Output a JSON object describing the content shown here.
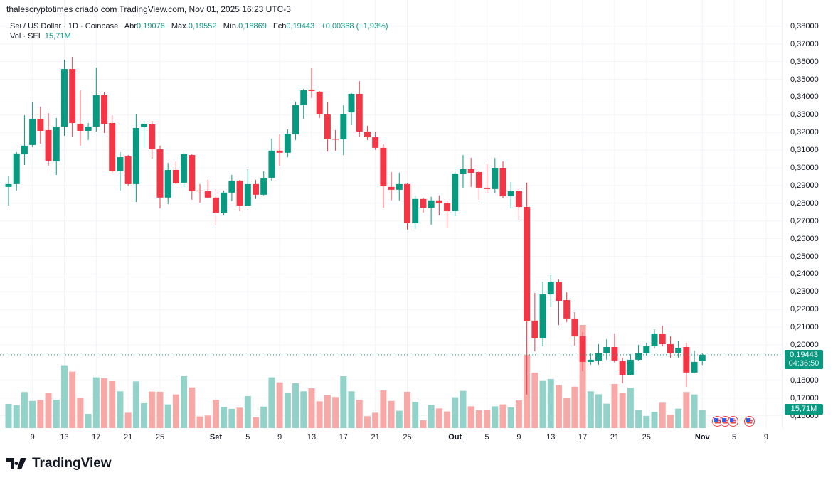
{
  "header": {
    "attribution": "thalescryptotimes criado com TradingView.com, Nov 01, 2025 16:23 UTC-3"
  },
  "legend": {
    "symbol": "Sei / US Dollar · 1D · Coinbase",
    "open_label": "Abr",
    "open": "0,19076",
    "high_label": "Máx.",
    "high": "0,19552",
    "low_label": "Mín.",
    "low": "0,18869",
    "close_label": "Fch",
    "close": "0,19443",
    "change": "+0,00368 (+1,93%)",
    "vol_label": "Vol · SEI",
    "vol": "15,71M"
  },
  "price_axis": {
    "labels": [
      "0,38000",
      "0,37000",
      "0,36000",
      "0,35000",
      "0,34000",
      "0,33000",
      "0,32000",
      "0,31000",
      "0,30000",
      "0,29000",
      "0,28000",
      "0,27000",
      "0,26000",
      "0,25000",
      "0,24000",
      "0,23000",
      "0,22000",
      "0,21000",
      "0,20000",
      "0,18000",
      "0,17000",
      "0,16000"
    ],
    "current_price": "0,19443",
    "countdown": "04:36:50",
    "current_volume": "15,71M"
  },
  "events": [
    "us-flag-icon",
    "us-flag-icon",
    "us-flag-icon",
    "us-flag-icon"
  ],
  "brand": {
    "name": "TradingView"
  },
  "colors": {
    "up": "#089981",
    "down": "#F23645",
    "vol_up": "#92d2c8",
    "vol_down": "#f7a9a8"
  },
  "chart_data": {
    "type": "candlestick",
    "title": "Sei / US Dollar · 1D · Coinbase",
    "start_date": "2025-08-06",
    "interval": "1D",
    "ylim": [
      0.1595,
      0.3815
    ],
    "grid": true,
    "fields": [
      "open",
      "high",
      "low",
      "close",
      "volume_M"
    ],
    "x_ticks": [
      {
        "label": "9",
        "index": 3
      },
      {
        "label": "13",
        "index": 7
      },
      {
        "label": "17",
        "index": 11
      },
      {
        "label": "21",
        "index": 15
      },
      {
        "label": "25",
        "index": 19
      },
      {
        "label": "Set",
        "index": 26,
        "bold": true
      },
      {
        "label": "5",
        "index": 30
      },
      {
        "label": "9",
        "index": 34
      },
      {
        "label": "13",
        "index": 38
      },
      {
        "label": "17",
        "index": 42
      },
      {
        "label": "21",
        "index": 46
      },
      {
        "label": "25",
        "index": 50
      },
      {
        "label": "Out",
        "index": 56,
        "bold": true
      },
      {
        "label": "5",
        "index": 60
      },
      {
        "label": "9",
        "index": 64
      },
      {
        "label": "13",
        "index": 68
      },
      {
        "label": "17",
        "index": 72
      },
      {
        "label": "21",
        "index": 76
      },
      {
        "label": "25",
        "index": 80
      },
      {
        "label": "Nov",
        "index": 87,
        "bold": true
      },
      {
        "label": "5",
        "index": 91
      },
      {
        "label": "9",
        "index": 95
      }
    ],
    "y_ticks": [
      0.38,
      0.37,
      0.36,
      0.35,
      0.34,
      0.33,
      0.32,
      0.31,
      0.3,
      0.29,
      0.28,
      0.27,
      0.26,
      0.25,
      0.24,
      0.23,
      0.22,
      0.21,
      0.2,
      0.18,
      0.17,
      0.16
    ],
    "last_price": 0.19443,
    "candles": [
      [
        0.2892,
        0.2952,
        0.2787,
        0.2908,
        20.8
      ],
      [
        0.2908,
        0.3089,
        0.2872,
        0.3081,
        19.6
      ],
      [
        0.3077,
        0.3297,
        0.3016,
        0.3125,
        31.0
      ],
      [
        0.3129,
        0.337,
        0.3117,
        0.3277,
        23.4
      ],
      [
        0.3277,
        0.3346,
        0.3137,
        0.3209,
        24.2
      ],
      [
        0.3213,
        0.3309,
        0.3012,
        0.304,
        30.4
      ],
      [
        0.3036,
        0.3281,
        0.296,
        0.3233,
        24.4
      ],
      [
        0.3233,
        0.3611,
        0.3181,
        0.3558,
        54.0
      ],
      [
        0.3558,
        0.3627,
        0.3177,
        0.3253,
        48.5
      ],
      [
        0.3249,
        0.3438,
        0.3125,
        0.3209,
        25.9
      ],
      [
        0.3209,
        0.3253,
        0.3157,
        0.3233,
        12.2
      ],
      [
        0.3233,
        0.3566,
        0.3205,
        0.341,
        43.6
      ],
      [
        0.341,
        0.3426,
        0.3197,
        0.3249,
        42.8
      ],
      [
        0.3253,
        0.3297,
        0.2972,
        0.298,
        40.3
      ],
      [
        0.298,
        0.3089,
        0.2872,
        0.306,
        31.6
      ],
      [
        0.3064,
        0.3072,
        0.2896,
        0.2908,
        13.2
      ],
      [
        0.2908,
        0.3305,
        0.2807,
        0.3225,
        40.1
      ],
      [
        0.3229,
        0.3265,
        0.3113,
        0.3245,
        21.4
      ],
      [
        0.3245,
        0.3265,
        0.3052,
        0.3105,
        31.4
      ],
      [
        0.3105,
        0.3125,
        0.2771,
        0.2832,
        31.2
      ],
      [
        0.2832,
        0.3028,
        0.2795,
        0.2988,
        20.4
      ],
      [
        0.2988,
        0.3036,
        0.2908,
        0.2912,
        28.9
      ],
      [
        0.2916,
        0.3085,
        0.2892,
        0.3077,
        44.6
      ],
      [
        0.3072,
        0.3077,
        0.282,
        0.2868,
        35.0
      ],
      [
        0.2872,
        0.2908,
        0.2803,
        0.2868,
        10.0
      ],
      [
        0.2868,
        0.2932,
        0.283,
        0.2832,
        10.8
      ],
      [
        0.2832,
        0.288,
        0.2675,
        0.2747,
        24.4
      ],
      [
        0.2747,
        0.2872,
        0.2731,
        0.286,
        18.1
      ],
      [
        0.286,
        0.296,
        0.2812,
        0.2928,
        16.5
      ],
      [
        0.2928,
        0.2932,
        0.2755,
        0.2787,
        17.5
      ],
      [
        0.2787,
        0.2992,
        0.2783,
        0.2908,
        27.5
      ],
      [
        0.2908,
        0.2932,
        0.2824,
        0.2848,
        9.4
      ],
      [
        0.2848,
        0.298,
        0.2845,
        0.294,
        18.5
      ],
      [
        0.2944,
        0.3165,
        0.2924,
        0.3097,
        43.6
      ],
      [
        0.3097,
        0.3189,
        0.3012,
        0.3085,
        39.3
      ],
      [
        0.3085,
        0.3217,
        0.306,
        0.3193,
        30.6
      ],
      [
        0.3189,
        0.3374,
        0.3157,
        0.3354,
        38.5
      ],
      [
        0.3354,
        0.3446,
        0.3277,
        0.3438,
        31.6
      ],
      [
        0.3442,
        0.3562,
        0.3394,
        0.3434,
        34.2
      ],
      [
        0.343,
        0.3434,
        0.3281,
        0.3305,
        23.0
      ],
      [
        0.3301,
        0.337,
        0.3093,
        0.3161,
        28.3
      ],
      [
        0.3163,
        0.3213,
        0.3097,
        0.3161,
        26.7
      ],
      [
        0.3161,
        0.3354,
        0.3072,
        0.3305,
        44.6
      ],
      [
        0.3313,
        0.3422,
        0.3241,
        0.3418,
        31.6
      ],
      [
        0.3418,
        0.349,
        0.3177,
        0.3205,
        24.4
      ],
      [
        0.3205,
        0.3237,
        0.3157,
        0.3173,
        10.2
      ],
      [
        0.3173,
        0.3205,
        0.3101,
        0.3113,
        13.2
      ],
      [
        0.3113,
        0.3133,
        0.2775,
        0.2896,
        32.4
      ],
      [
        0.2892,
        0.2976,
        0.2816,
        0.2876,
        23.4
      ],
      [
        0.2876,
        0.2972,
        0.2816,
        0.2908,
        14.9
      ],
      [
        0.2908,
        0.2912,
        0.2651,
        0.2687,
        31.2
      ],
      [
        0.2687,
        0.2844,
        0.2655,
        0.2824,
        22.6
      ],
      [
        0.2824,
        0.2832,
        0.2747,
        0.2775,
        6.7
      ],
      [
        0.2775,
        0.2836,
        0.2679,
        0.2816,
        20.0
      ],
      [
        0.2816,
        0.2844,
        0.2731,
        0.28,
        16.9
      ],
      [
        0.28,
        0.2812,
        0.2663,
        0.2755,
        14.3
      ],
      [
        0.2755,
        0.2976,
        0.2727,
        0.2968,
        26.5
      ],
      [
        0.2968,
        0.3072,
        0.2888,
        0.2992,
        32.0
      ],
      [
        0.2992,
        0.3056,
        0.2892,
        0.2972,
        18.7
      ],
      [
        0.2976,
        0.2984,
        0.282,
        0.2888,
        15.3
      ],
      [
        0.2888,
        0.3024,
        0.286,
        0.288,
        15.9
      ],
      [
        0.288,
        0.3056,
        0.2856,
        0.3,
        18.7
      ],
      [
        0.3,
        0.3036,
        0.2828,
        0.284,
        20.4
      ],
      [
        0.284,
        0.292,
        0.2771,
        0.2868,
        17.7
      ],
      [
        0.2868,
        0.288,
        0.2707,
        0.2779,
        23.8
      ],
      [
        0.2779,
        0.2916,
        0.1719,
        0.2133,
        63.1
      ],
      [
        0.2137,
        0.2293,
        0.1964,
        0.2036,
        47.7
      ],
      [
        0.2036,
        0.2357,
        0.1992,
        0.2285,
        40.5
      ],
      [
        0.2285,
        0.2394,
        0.2213,
        0.2357,
        42.2
      ],
      [
        0.2357,
        0.2369,
        0.2112,
        0.2249,
        36.9
      ],
      [
        0.2253,
        0.2297,
        0.2129,
        0.2149,
        25.7
      ],
      [
        0.2149,
        0.2185,
        0.1996,
        0.2048,
        35.6
      ],
      [
        0.2048,
        0.2072,
        0.1851,
        0.1904,
        88.6
      ],
      [
        0.1904,
        0.1952,
        0.1888,
        0.1916,
        31.6
      ],
      [
        0.1912,
        0.2004,
        0.1888,
        0.1952,
        29.1
      ],
      [
        0.1952,
        0.2032,
        0.1916,
        0.1988,
        21.0
      ],
      [
        0.1988,
        0.2064,
        0.19,
        0.1912,
        37.9
      ],
      [
        0.1908,
        0.1928,
        0.1783,
        0.1831,
        30.4
      ],
      [
        0.1831,
        0.1948,
        0.1827,
        0.1916,
        34.6
      ],
      [
        0.1916,
        0.2,
        0.1912,
        0.1952,
        15.7
      ],
      [
        0.1952,
        0.2012,
        0.194,
        0.1992,
        10.4
      ],
      [
        0.1992,
        0.2088,
        0.198,
        0.2064,
        13.9
      ],
      [
        0.2064,
        0.2108,
        0.1992,
        0.2004,
        21.8
      ],
      [
        0.2004,
        0.2048,
        0.1928,
        0.1952,
        11.4
      ],
      [
        0.1952,
        0.202,
        0.1928,
        0.1984,
        16.7
      ],
      [
        0.1988,
        0.2012,
        0.1763,
        0.1844,
        31.0
      ],
      [
        0.1844,
        0.1968,
        0.184,
        0.1904,
        28.9
      ],
      [
        0.19076,
        0.19552,
        0.18869,
        0.19443,
        15.71
      ]
    ]
  }
}
